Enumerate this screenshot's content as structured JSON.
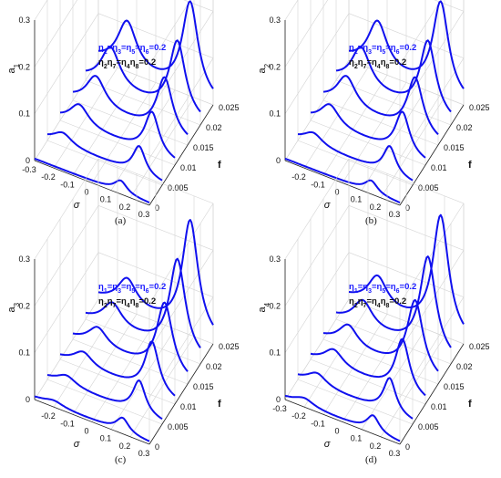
{
  "chart_data": [
    {
      "type": "line",
      "panel": "a",
      "caption": "(a)",
      "xlabel": "σ",
      "ylabel_base": "a",
      "ylabel_sub": "1",
      "zlabel": "f",
      "x_ticks": [
        "-0.3",
        "-0.2",
        "-0.1",
        "0",
        "0.1",
        "0.2",
        "0.3"
      ],
      "y_ticks": [
        "0",
        "0.1",
        "0.2",
        "0.3"
      ],
      "f_ticks": [
        "0",
        "0.005",
        "0.01",
        "0.015",
        "0.02",
        "0.025"
      ],
      "legend_line1": [
        "η",
        "1",
        "=η",
        "3",
        "=η",
        "5",
        "=η",
        "6",
        "=0.2"
      ],
      "legend_line2": [
        "η",
        "2",
        "η",
        "7",
        "=η",
        "4",
        "η",
        "8",
        "=0.2"
      ],
      "xlim": [
        -0.3,
        0.3
      ],
      "ylim": [
        0,
        0.3
      ],
      "flim": [
        0,
        0.025
      ],
      "series": [
        {
          "f": 0.0,
          "peaks": [
            {
              "x": 0.15,
              "h": 0.025,
              "w": 0.04
            }
          ]
        },
        {
          "f": 0.005,
          "peaks": [
            {
              "x": 0.18,
              "h": 0.06,
              "w": 0.04
            },
            {
              "x": -0.22,
              "h": 0.025,
              "w": 0.06
            }
          ]
        },
        {
          "f": 0.01,
          "peaks": [
            {
              "x": 0.18,
              "h": 0.09,
              "w": 0.045
            },
            {
              "x": -0.2,
              "h": 0.045,
              "w": 0.06
            }
          ]
        },
        {
          "f": 0.015,
          "peaks": [
            {
              "x": 0.18,
              "h": 0.12,
              "w": 0.05
            },
            {
              "x": -0.18,
              "h": 0.065,
              "w": 0.06
            }
          ]
        },
        {
          "f": 0.02,
          "peaks": [
            {
              "x": 0.18,
              "h": 0.155,
              "w": 0.05
            },
            {
              "x": -0.17,
              "h": 0.085,
              "w": 0.06
            }
          ]
        },
        {
          "f": 0.025,
          "peaks": [
            {
              "x": 0.18,
              "h": 0.195,
              "w": 0.05
            },
            {
              "x": -0.15,
              "h": 0.1,
              "w": 0.06
            }
          ]
        }
      ]
    },
    {
      "type": "line",
      "panel": "b",
      "caption": "(b)",
      "xlabel": "σ",
      "ylabel_base": "a",
      "ylabel_sub": "2",
      "zlabel": "f",
      "x_ticks": [
        "-0.2",
        "-0.1",
        "0",
        "0.1",
        "0.2",
        "0.3"
      ],
      "y_ticks": [
        "0",
        "0.1",
        "0.2",
        "0.3"
      ],
      "f_ticks": [
        "0",
        "0.005",
        "0.01",
        "0.015",
        "0.02",
        "0.025"
      ],
      "legend_line1": [
        "η",
        "1",
        "=η",
        "3",
        "=η",
        "5",
        "=η",
        "6",
        "=0.2"
      ],
      "legend_line2": [
        "η",
        "2",
        "η",
        "7",
        "=η",
        "4",
        "η",
        "8",
        "=0.2"
      ],
      "xlim": [
        -0.3,
        0.3
      ],
      "ylim": [
        0,
        0.3
      ],
      "flim": [
        0,
        0.025
      ],
      "series": [
        {
          "f": 0.0,
          "peaks": [
            {
              "x": 0.15,
              "h": 0.025,
              "w": 0.04
            }
          ]
        },
        {
          "f": 0.005,
          "peaks": [
            {
              "x": 0.18,
              "h": 0.06,
              "w": 0.04
            },
            {
              "x": -0.22,
              "h": 0.025,
              "w": 0.06
            }
          ]
        },
        {
          "f": 0.01,
          "peaks": [
            {
              "x": 0.18,
              "h": 0.09,
              "w": 0.045
            },
            {
              "x": -0.2,
              "h": 0.045,
              "w": 0.06
            }
          ]
        },
        {
          "f": 0.015,
          "peaks": [
            {
              "x": 0.18,
              "h": 0.12,
              "w": 0.05
            },
            {
              "x": -0.18,
              "h": 0.065,
              "w": 0.06
            }
          ]
        },
        {
          "f": 0.02,
          "peaks": [
            {
              "x": 0.18,
              "h": 0.155,
              "w": 0.05
            },
            {
              "x": -0.17,
              "h": 0.085,
              "w": 0.06
            }
          ]
        },
        {
          "f": 0.025,
          "peaks": [
            {
              "x": 0.18,
              "h": 0.195,
              "w": 0.05
            },
            {
              "x": -0.15,
              "h": 0.1,
              "w": 0.06
            }
          ]
        }
      ]
    },
    {
      "type": "line",
      "panel": "c",
      "caption": "(c)",
      "xlabel": "σ",
      "ylabel_base": "a",
      "ylabel_sub": "3",
      "zlabel": "f",
      "x_ticks": [
        "-0.2",
        "-0.1",
        "0",
        "0.1",
        "0.2",
        "0.3"
      ],
      "y_ticks": [
        "0",
        "0.1",
        "0.2",
        "0.3"
      ],
      "f_ticks": [
        "0",
        "0.005",
        "0.01",
        "0.015",
        "0.02",
        "0.025"
      ],
      "legend_line1": [
        "η",
        "1",
        "=η",
        "3",
        "=η",
        "5",
        "=η",
        "6",
        "=0.2"
      ],
      "legend_line2": [
        "η",
        "2",
        "η",
        "7",
        "=η",
        "4",
        "η",
        "8",
        "=0.2"
      ],
      "xlim": [
        -0.3,
        0.3
      ],
      "ylim": [
        0,
        0.3
      ],
      "flim": [
        0,
        0.025
      ],
      "series": [
        {
          "f": 0.0,
          "peaks": [
            {
              "x": 0.16,
              "h": 0.03,
              "w": 0.04
            },
            {
              "x": -0.2,
              "h": 0.01,
              "w": 0.06
            }
          ]
        },
        {
          "f": 0.005,
          "peaks": [
            {
              "x": 0.18,
              "h": 0.07,
              "w": 0.04
            },
            {
              "x": -0.2,
              "h": 0.02,
              "w": 0.06
            }
          ]
        },
        {
          "f": 0.01,
          "peaks": [
            {
              "x": 0.18,
              "h": 0.11,
              "w": 0.045
            },
            {
              "x": -0.18,
              "h": 0.03,
              "w": 0.06
            }
          ]
        },
        {
          "f": 0.015,
          "peaks": [
            {
              "x": 0.18,
              "h": 0.15,
              "w": 0.05
            },
            {
              "x": -0.17,
              "h": 0.04,
              "w": 0.06
            }
          ]
        },
        {
          "f": 0.02,
          "peaks": [
            {
              "x": 0.18,
              "h": 0.2,
              "w": 0.05
            },
            {
              "x": -0.16,
              "h": 0.05,
              "w": 0.06
            }
          ]
        },
        {
          "f": 0.025,
          "peaks": [
            {
              "x": 0.18,
              "h": 0.24,
              "w": 0.05
            },
            {
              "x": -0.15,
              "h": 0.06,
              "w": 0.06
            }
          ]
        }
      ]
    },
    {
      "type": "line",
      "panel": "d",
      "caption": "(d)",
      "xlabel": "σ",
      "ylabel_base": "a",
      "ylabel_sub": "4",
      "zlabel": "f",
      "x_ticks": [
        "-0.3",
        "-0.2",
        "-0.1",
        "0",
        "0.1",
        "0.2",
        "0.3"
      ],
      "y_ticks": [
        "0",
        "0.1",
        "0.2",
        "0.3"
      ],
      "f_ticks": [
        "0",
        "0.005",
        "0.01",
        "0.015",
        "0.02",
        "0.025"
      ],
      "legend_line1": [
        "η",
        "1",
        "=η",
        "3",
        "=η",
        "5",
        "=η",
        "6",
        "=0.2"
      ],
      "legend_line2": [
        "η",
        "2",
        "η",
        "7",
        "=η",
        "4",
        "η",
        "8",
        "=0.2"
      ],
      "xlim": [
        -0.3,
        0.3
      ],
      "ylim": [
        0,
        0.3
      ],
      "flim": [
        0,
        0.025
      ],
      "series": [
        {
          "f": 0.0,
          "peaks": [
            {
              "x": 0.16,
              "h": 0.035,
              "w": 0.04
            },
            {
              "x": -0.2,
              "h": 0.015,
              "w": 0.06
            }
          ]
        },
        {
          "f": 0.005,
          "peaks": [
            {
              "x": 0.18,
              "h": 0.075,
              "w": 0.04
            },
            {
              "x": -0.2,
              "h": 0.025,
              "w": 0.06
            }
          ]
        },
        {
          "f": 0.01,
          "peaks": [
            {
              "x": 0.18,
              "h": 0.115,
              "w": 0.045
            },
            {
              "x": -0.18,
              "h": 0.035,
              "w": 0.06
            }
          ]
        },
        {
          "f": 0.015,
          "peaks": [
            {
              "x": 0.18,
              "h": 0.155,
              "w": 0.05
            },
            {
              "x": -0.17,
              "h": 0.045,
              "w": 0.06
            }
          ]
        },
        {
          "f": 0.02,
          "peaks": [
            {
              "x": 0.18,
              "h": 0.205,
              "w": 0.05
            },
            {
              "x": -0.16,
              "h": 0.055,
              "w": 0.06
            }
          ]
        },
        {
          "f": 0.025,
          "peaks": [
            {
              "x": 0.18,
              "h": 0.25,
              "w": 0.05
            },
            {
              "x": -0.15,
              "h": 0.065,
              "w": 0.06
            }
          ]
        }
      ]
    }
  ]
}
